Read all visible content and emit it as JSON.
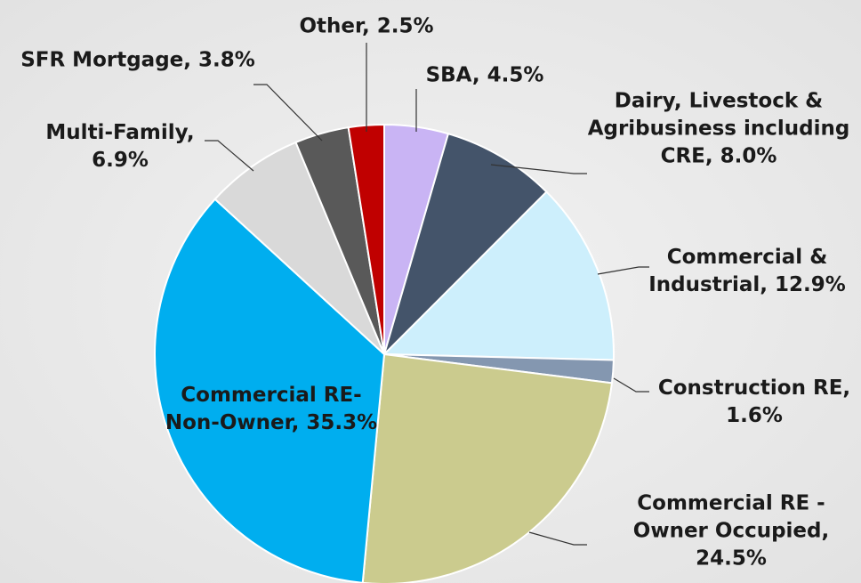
{
  "chart_data": {
    "type": "pie",
    "values": [
      4.5,
      8.0,
      12.9,
      1.6,
      24.5,
      35.3,
      6.9,
      3.8,
      2.5
    ],
    "value_labels": [
      "SBA, 4.5%",
      "Dairy, Livestock & Agribusiness including CRE, 8.0%",
      "Commercial & Industrial, 12.9%",
      "Construction RE, 1.6%",
      "Commercial RE - Owner Occupied, 24.5%",
      "Commercial RE-Non-Owner, 35.3%",
      "Multi-Family, 6.9%",
      "SFR Mortgage, 3.8%",
      "Other, 2.5%"
    ],
    "colors": [
      "#c9b4f4",
      "#44546a",
      "#cdeffc",
      "#8497b0",
      "#cbcb8e",
      "#00aeef",
      "#d9d9d9",
      "#595959",
      "#c00000"
    ]
  }
}
